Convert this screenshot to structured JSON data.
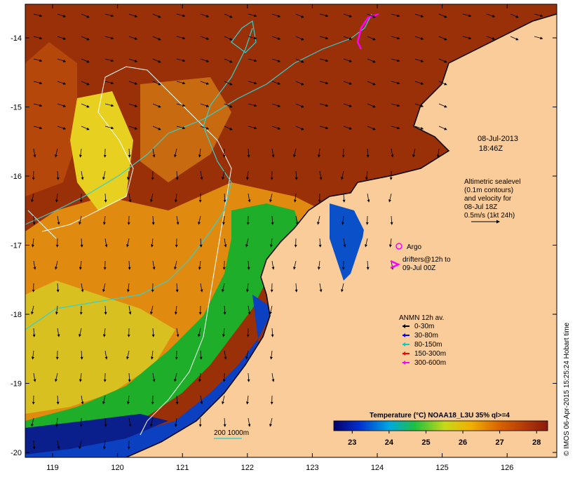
{
  "map": {
    "lat_ticks": [
      "-14",
      "-15",
      "-16",
      "-17",
      "-18",
      "-19",
      "-20"
    ],
    "lon_ticks": [
      "119",
      "120",
      "121",
      "122",
      "123",
      "124",
      "125",
      "126"
    ]
  },
  "timestamp": {
    "date": "08-Jul-2013",
    "time": "18:46Z"
  },
  "altimetry_note": [
    "Altimetric sealevel",
    "(0.1m contours)",
    "and velocity for",
    "08-Jul 18Z",
    "0.5m/s (1kt 24h)"
  ],
  "argo_label": "Argo",
  "drifters_label": [
    "drifters@12h to",
    "09-Jul 00Z"
  ],
  "anmn": {
    "title": "ANMN 12h av.",
    "items": [
      {
        "label": "0-30m",
        "color": "#000000"
      },
      {
        "label": "30-80m",
        "color": "#0000ff"
      },
      {
        "label": "80-150m",
        "color": "#00cccc"
      },
      {
        "label": "150-300m",
        "color": "#ff0000"
      },
      {
        "label": "300-600m",
        "color": "#ff00ff"
      }
    ]
  },
  "isobath_label": "200 1000m",
  "colorbar": {
    "title": "Temperature (°C) NOAA18_L3U 35% ql>=4",
    "ticks": [
      "23",
      "24",
      "25",
      "26",
      "27",
      "28"
    ],
    "min": 22.5,
    "max": 28.3
  },
  "credit": "© IMOS 06-Apr-2015 15:25:24 Hobart time",
  "colors": {
    "land": "#f9cc99",
    "warm": "#9a3008",
    "cool": "#1fae2a",
    "cold": "#0b1f8c",
    "contour": "#ffffff",
    "isobath": "#33d0d0",
    "drifter": "#ff00ff"
  }
}
